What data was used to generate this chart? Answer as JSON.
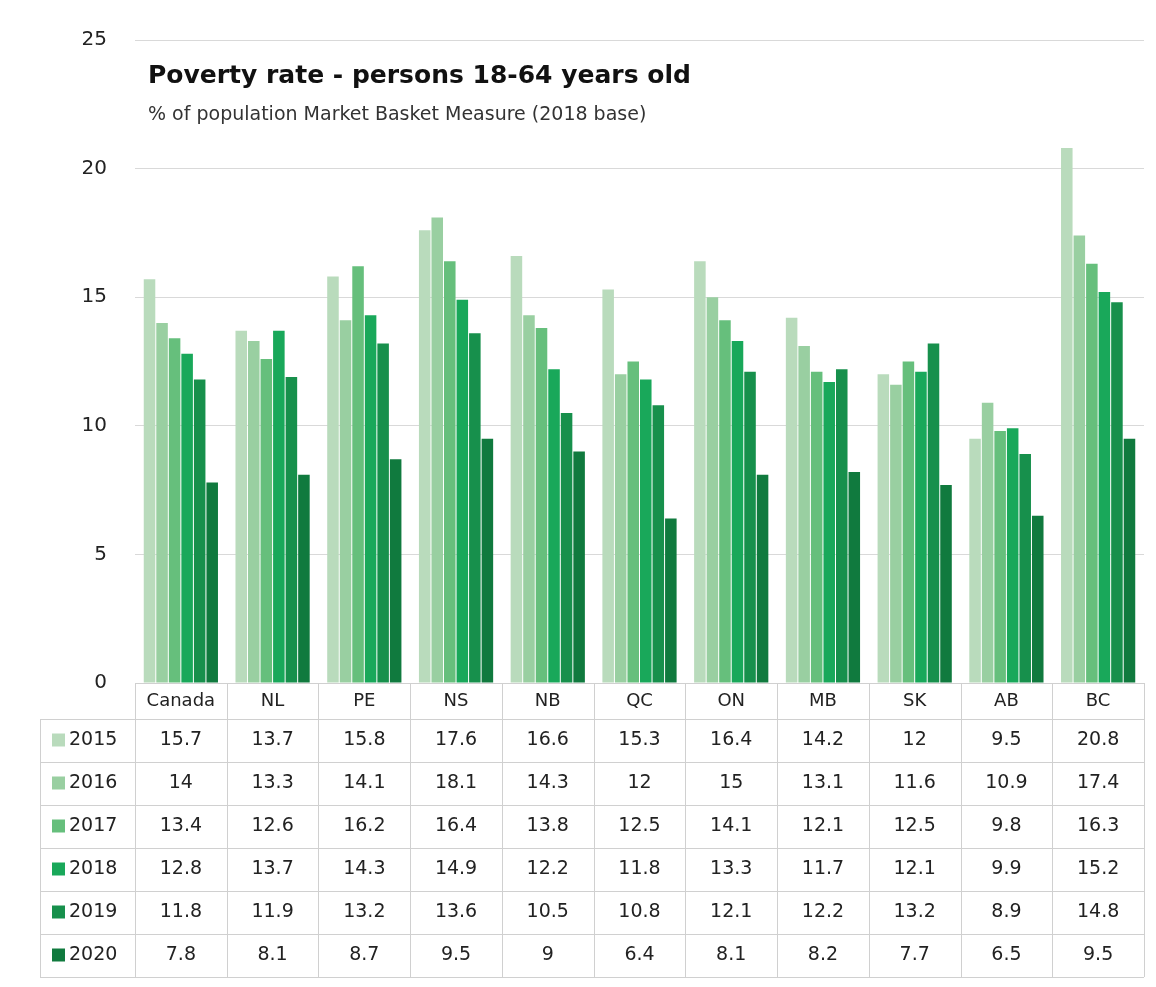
{
  "chart_data": {
    "type": "bar",
    "title": "Poverty rate - persons 18-64 years old",
    "subtitle": "% of population Market Basket Measure (2018 base)",
    "categories": [
      "Canada",
      "NL",
      "PE",
      "NS",
      "NB",
      "QC",
      "ON",
      "MB",
      "SK",
      "AB",
      "BC"
    ],
    "series": [
      {
        "name": "2015",
        "color": "#b9dbbc",
        "values": [
          15.7,
          13.7,
          15.8,
          17.6,
          16.6,
          15.3,
          16.4,
          14.2,
          12,
          9.5,
          20.8
        ]
      },
      {
        "name": "2016",
        "color": "#99cfa1",
        "values": [
          14,
          13.3,
          14.1,
          18.1,
          14.3,
          12,
          15,
          13.1,
          11.6,
          10.9,
          17.4
        ]
      },
      {
        "name": "2017",
        "color": "#66bf7c",
        "values": [
          13.4,
          12.6,
          16.2,
          16.4,
          13.8,
          12.5,
          14.1,
          12.1,
          12.5,
          9.8,
          16.3
        ]
      },
      {
        "name": "2018",
        "color": "#19a85a",
        "values": [
          12.8,
          13.7,
          14.3,
          14.9,
          12.2,
          11.8,
          13.3,
          11.7,
          12.1,
          9.9,
          15.2
        ]
      },
      {
        "name": "2019",
        "color": "#17904c",
        "values": [
          11.8,
          11.9,
          13.2,
          13.6,
          10.5,
          10.8,
          12.1,
          12.2,
          13.2,
          8.9,
          14.8
        ]
      },
      {
        "name": "2020",
        "color": "#107a3e",
        "values": [
          7.8,
          8.1,
          8.7,
          9.5,
          9,
          6.4,
          8.1,
          8.2,
          7.7,
          6.5,
          9.5
        ]
      }
    ],
    "ylim": [
      0,
      25
    ],
    "yticks": [
      0,
      5,
      10,
      15,
      20,
      25
    ],
    "grid": "y",
    "legend": "bottom",
    "data_labels": true
  }
}
